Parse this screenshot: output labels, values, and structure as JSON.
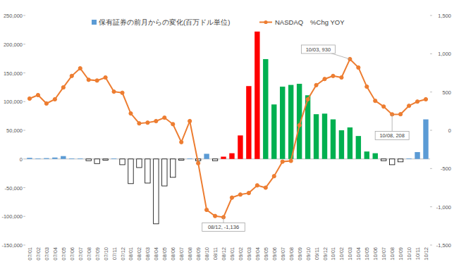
{
  "chart_data": {
    "type": "combo",
    "categories": [
      "07/01",
      "07/02",
      "07/03",
      "07/04",
      "07/05",
      "07/06",
      "07/07",
      "07/08",
      "07/09",
      "07/10",
      "07/11",
      "07/12",
      "08/01",
      "08/02",
      "08/03",
      "08/04",
      "08/05",
      "08/06",
      "08/07",
      "08/08",
      "08/09",
      "08/10",
      "08/11",
      "08/12",
      "09/01",
      "09/02",
      "09/03",
      "09/04",
      "09/05",
      "09/06",
      "09/07",
      "09/08",
      "09/09",
      "09/10",
      "09/11",
      "09/12",
      "10/01",
      "10/02",
      "10/03",
      "10/04",
      "10/05",
      "10/06",
      "10/07",
      "10/08",
      "10/09",
      "10/10",
      "10/11",
      "10/12"
    ],
    "series": [
      {
        "name": "保有証券の前月からの変化(百万ドル単位)",
        "type": "bar",
        "color": "#5b9bd5",
        "colors": [
          "#5b9bd5",
          "#5b9bd5",
          "#5b9bd5",
          "#5b9bd5",
          "#5b9bd5",
          "#5b9bd5",
          "#5b9bd5",
          "#ffffff",
          "#ffffff",
          "#ffffff",
          "#5b9bd5",
          "#ffffff",
          "#ffffff",
          "#ffffff",
          "#ffffff",
          "#ffffff",
          "#ffffff",
          "#ffffff",
          "#ffffff",
          "#5b9bd5",
          "#ffffff",
          "#5b9bd5",
          "#ffffff",
          "#ff0000",
          "#ff0000",
          "#ff0000",
          "#ff0000",
          "#ff0000",
          "#00b050",
          "#00b050",
          "#00b050",
          "#00b050",
          "#00b050",
          "#00b050",
          "#00b050",
          "#00b050",
          "#00b050",
          "#00b050",
          "#00b050",
          "#00b050",
          "#00b050",
          "#00b050",
          "#ffffff",
          "#ffffff",
          "#ffffff",
          "#5b9bd5",
          "#5b9bd5",
          "#5b9bd5"
        ],
        "values": [
          2000,
          1000,
          1500,
          2500,
          5000,
          1000,
          1000,
          -3000,
          -8000,
          -2000,
          1000,
          -10000,
          -43000,
          -15000,
          -42000,
          -113000,
          -47000,
          -32000,
          -2000,
          1000,
          -3000,
          9000,
          -3000,
          4000,
          10000,
          41000,
          127000,
          222000,
          174000,
          95000,
          126000,
          129000,
          131000,
          111000,
          78000,
          79000,
          69000,
          50000,
          55000,
          40000,
          13000,
          10000,
          -3000,
          -10000,
          -5000,
          1000,
          12000,
          69000
        ]
      },
      {
        "name": "NASDAQ　%Chg YOY",
        "type": "line",
        "color": "#ed7d31",
        "marker": "circle",
        "axis": "y2",
        "values": [
          414,
          460,
          350,
          405,
          560,
          710,
          810,
          660,
          650,
          690,
          505,
          490,
          220,
          90,
          100,
          120,
          165,
          80,
          -155,
          120,
          -430,
          -1040,
          -1120,
          -1136,
          -880,
          -840,
          -820,
          -720,
          -750,
          -600,
          -410,
          -400,
          65,
          405,
          590,
          670,
          710,
          690,
          930,
          820,
          570,
          385,
          310,
          208,
          210,
          320,
          375,
          405
        ]
      }
    ],
    "ylim": [
      -150000,
      250000
    ],
    "yticks": [
      {
        "value": -150000,
        "label": "-150,000"
      },
      {
        "value": -100000,
        "label": "-100,000"
      },
      {
        "value": -50000,
        "label": "-50,000"
      },
      0,
      {
        "value": 50000,
        "label": "50,000"
      },
      {
        "value": 100000,
        "label": "100,000"
      },
      {
        "value": 150000,
        "label": "150,000"
      },
      {
        "value": 200000,
        "label": "200,000"
      },
      {
        "value": 250000,
        "label": "250,000"
      }
    ],
    "y2lim": [
      -1500,
      1500
    ],
    "y2ticks": [
      {
        "value": -1500,
        "label": "-1,500"
      },
      {
        "value": -1000,
        "label": "-1,000"
      },
      -500,
      0,
      500,
      {
        "value": 1000,
        "label": "1,000"
      },
      {
        "value": 1500,
        "label": "1,500"
      }
    ],
    "annotations": [
      {
        "label": "10/03, 930",
        "x": "10/03",
        "y": 930
      },
      {
        "label": "10/08, 208",
        "x": "10/08",
        "y": 208
      },
      {
        "label": "08/12, -1,136",
        "x": "08/12",
        "y": -1136
      }
    ],
    "legend": "top",
    "grid": false
  }
}
